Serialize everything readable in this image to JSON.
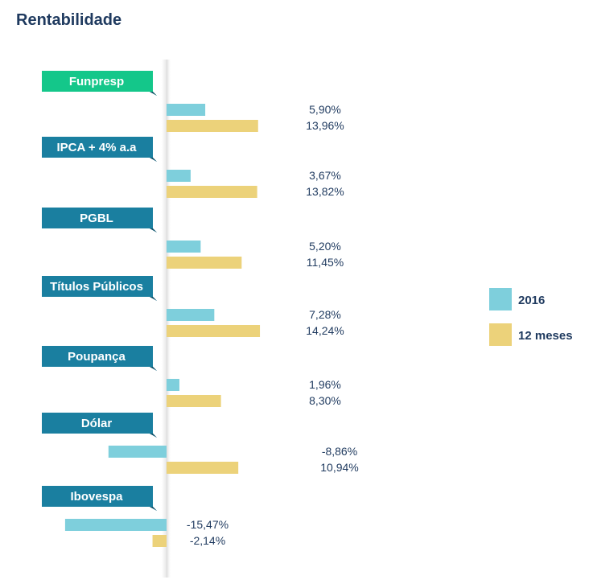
{
  "title": "Rentabilidade",
  "chart_data": {
    "type": "bar",
    "orientation": "horizontal",
    "categories": [
      "Funpresp",
      "IPCA + 4% a.a",
      "PGBL",
      "Títulos Públicos",
      "Poupança",
      "Dólar",
      "Ibovespa"
    ],
    "series": [
      {
        "name": "2016",
        "color": "#7ecfdc",
        "values": [
          5.9,
          3.67,
          5.2,
          7.28,
          1.96,
          -8.86,
          -15.47
        ],
        "labels": [
          "5,90%",
          "3,67%",
          "5,20%",
          "7,28%",
          "1,96%",
          "-8,86%",
          "-15,47%"
        ]
      },
      {
        "name": "12 meses",
        "color": "#ecd27a",
        "values": [
          13.96,
          13.82,
          11.45,
          14.24,
          8.3,
          10.94,
          -2.14
        ],
        "labels": [
          "13,96%",
          "13,82%",
          "11,45%",
          "14,24%",
          "8,30%",
          "10,94%",
          "-2,14%"
        ]
      }
    ],
    "label_colors": [
      "#14c78a",
      "#1a7fa0",
      "#1a7fa0",
      "#1a7fa0",
      "#1a7fa0",
      "#1a7fa0",
      "#1a7fa0"
    ],
    "legend": "right",
    "grid": false
  }
}
